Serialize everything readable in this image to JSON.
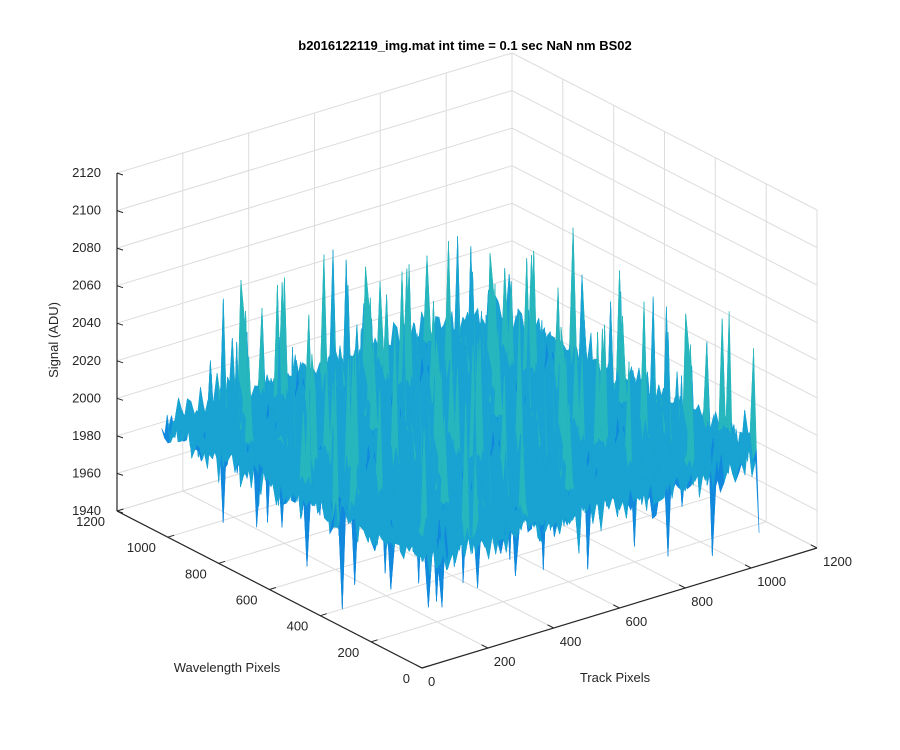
{
  "chart_data": {
    "type": "surface",
    "title": "b2016122119_img.mat int time = 0.1 sec  NaN nm BS02",
    "xlabel": "Track Pixels",
    "ylabel": "Wavelength Pixels",
    "zlabel": "Signal (ADU)",
    "xlim": [
      0,
      1200
    ],
    "ylim": [
      0,
      1200
    ],
    "zlim": [
      1940,
      2120
    ],
    "x_ticks": [
      "0",
      "200",
      "400",
      "600",
      "800",
      "1000",
      "1200"
    ],
    "y_ticks": [
      "0",
      "200",
      "400",
      "600",
      "800",
      "1000",
      "1200"
    ],
    "z_ticks": [
      "1940",
      "1960",
      "1980",
      "2000",
      "2020",
      "2040",
      "2060",
      "2080",
      "2100",
      "2120"
    ],
    "surface_extent": {
      "x": [
        0,
        1024
      ],
      "y": [
        0,
        1024
      ]
    },
    "surface_baseline": 2000,
    "surface_noise_range": [
      1960,
      2080
    ],
    "grid": true,
    "colormap": [
      "#0e6fd2",
      "#1189dd",
      "#19a3d2",
      "#27b6bd",
      "#4fc19f",
      "#7ec77f",
      "#b1c55f"
    ]
  }
}
